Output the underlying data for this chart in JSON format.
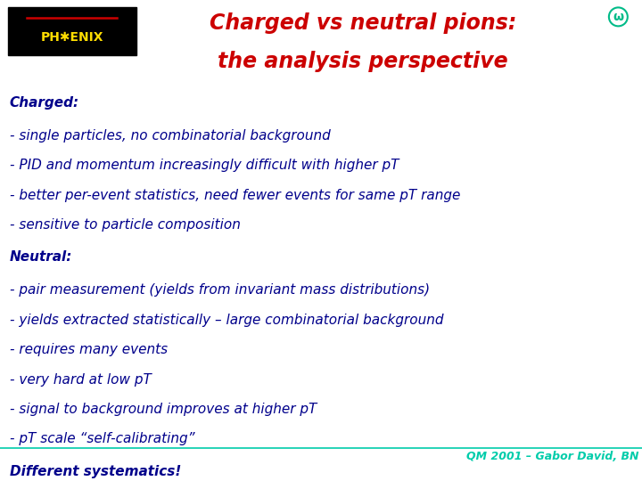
{
  "title_line1": "Charged vs neutral pions:",
  "title_line2": "the analysis perspective",
  "title_color": "#cc0000",
  "body_color": "#00008B",
  "footer_color": "#00ccaa",
  "background_color": "#ffffff",
  "charged_header": "Charged:",
  "charged_items": [
    "- single particles, no combinatorial background",
    "- PID and momentum increasingly difficult with higher pT",
    "- better per-event statistics, need fewer events for same pT range",
    "- sensitive to particle composition"
  ],
  "neutral_header": "Neutral:",
  "neutral_items": [
    "- pair measurement (yields from invariant mass distributions)",
    "- yields extracted statistically – large combinatorial background",
    "- requires many events",
    "- very hard at low pT",
    "- signal to background improves at higher pT",
    "- pT scale “self-calibrating”"
  ],
  "different_systematics": "Different systematics!",
  "footer_text": "QM 2001 – Gabor David, BN",
  "logo_bg": "#000000",
  "logo_text": "PH✱ENIX",
  "logo_text_color": "#ffdd00",
  "logo_wing_color": "#cc0000",
  "omega_color": "#00bb88",
  "title_fontsize": 17,
  "body_fontsize": 11,
  "footer_fontsize": 9
}
